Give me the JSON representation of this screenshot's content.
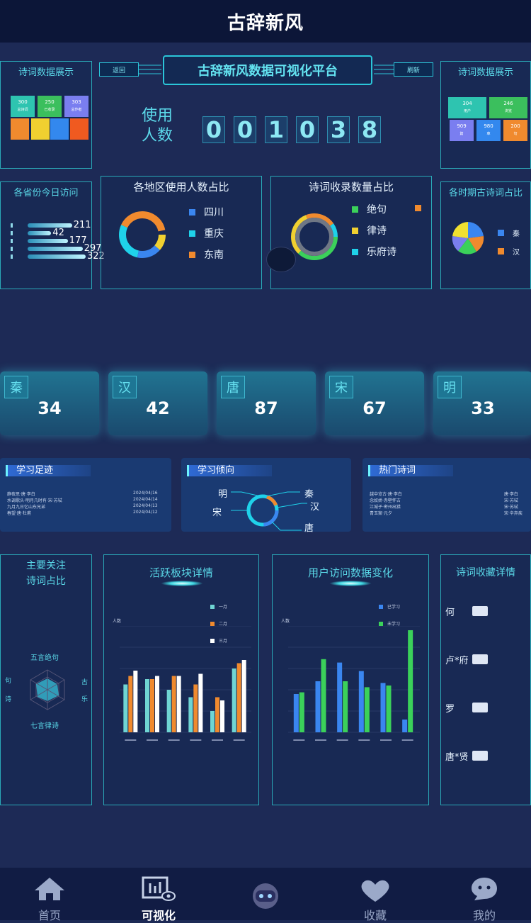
{
  "app_title": "古辞新风",
  "dashboard": {
    "title": "古辞新风数据可视化平台",
    "left_button": "返回",
    "right_button": "刷新",
    "counter_label_1": "使用",
    "counter_label_2": "人数",
    "counter_digits": [
      "0",
      "0",
      "1",
      "0",
      "3",
      "8"
    ]
  },
  "panels": {
    "poem_data_left": {
      "title": "诗词数据展示",
      "tiles": [
        {
          "value": "300",
          "label": "总诗词",
          "color": "#2ec4b0"
        },
        {
          "value": "250",
          "label": "已收录",
          "color": "#3bbf5d"
        },
        {
          "value": "303",
          "label": "总作者",
          "color": "#7a7ef0"
        },
        {
          "value": "",
          "label": "",
          "color": "#f08a2e"
        },
        {
          "value": "",
          "label": "",
          "color": "#f0d030"
        },
        {
          "value": "",
          "label": "",
          "color": "#3388ee"
        },
        {
          "value": "",
          "label": "",
          "color": "#f05a20"
        }
      ]
    },
    "poem_data_right": {
      "title": "诗词数据展示",
      "tiles": [
        {
          "value": "304",
          "label": "用户",
          "color": "#2ec4b0"
        },
        {
          "value": "246",
          "label": "浏览",
          "color": "#3bbf5d"
        },
        {
          "value": "909",
          "label": "篇",
          "color": "#7a7ef0"
        },
        {
          "value": "980",
          "label": "章",
          "color": "#3388ee"
        },
        {
          "value": "200",
          "label": "句",
          "color": "#f08a2e"
        }
      ]
    },
    "province_visits": {
      "title": "各省份今日访问",
      "values": [
        211,
        42,
        177,
        297,
        322
      ]
    },
    "region_share": {
      "title": "各地区使用人数占比",
      "legend": [
        {
          "name": "四川",
          "color": "#3a86f0"
        },
        {
          "name": "重庆",
          "color": "#1fd2ea"
        },
        {
          "name": "东南",
          "color": "#f08a2e"
        }
      ]
    },
    "poem_collection_share": {
      "title": "诗词收录数量占比",
      "legend": [
        {
          "name": "绝句",
          "color": "#3bd15a"
        },
        {
          "name": "律诗",
          "color": "#f0d030"
        },
        {
          "name": "乐府诗",
          "color": "#1fd2ea"
        }
      ]
    },
    "dynasty_share": {
      "title": "各时期古诗词占比",
      "legend": [
        {
          "name": "秦",
          "color": "#3a86f0"
        },
        {
          "name": "汉",
          "color": "#f08a2e"
        }
      ]
    }
  },
  "dynasties": [
    {
      "name": "秦",
      "value": "34"
    },
    {
      "name": "汉",
      "value": "42"
    },
    {
      "name": "唐",
      "value": "87"
    },
    {
      "name": "宋",
      "value": "67"
    },
    {
      "name": "明",
      "value": "33"
    }
  ],
  "learning_footprint": {
    "title": "学习足迹",
    "rows": [
      {
        "text": "静夜思·唐·李白",
        "date": "2024/04/16"
      },
      {
        "text": "水调歌头·明月几时有·宋·苏轼",
        "date": "2024/04/14"
      },
      {
        "text": "九月九日忆山东兄弟",
        "date": "2024/04/13"
      },
      {
        "text": "春望·唐·杜甫",
        "date": "2024/04/12"
      }
    ]
  },
  "learning_tendency": {
    "title": "学习倾向",
    "labels": {
      "ming": "明",
      "song": "宋",
      "qin": "秦",
      "han": "汉",
      "tang": "唐"
    }
  },
  "hot_poems": {
    "title": "热门诗词",
    "rows": [
      {
        "text": "越中览古·唐·李白",
        "right": "唐·李白"
      },
      {
        "text": "念奴娇·赤壁怀古",
        "right": "宋·苏轼"
      },
      {
        "text": "江城子·密州出猎",
        "right": "宋·苏轼"
      },
      {
        "text": "青玉案·元夕",
        "right": "宋·辛弃疾"
      }
    ]
  },
  "focus_share": {
    "title_1": "主要关注",
    "title_2": "诗词占比",
    "labels": {
      "top": "五言绝句",
      "bottom": "七言律诗",
      "left_1": "句",
      "left_2": "诗",
      "right_1": "古",
      "right_2": "乐"
    }
  },
  "active_sections": {
    "title": "活跃板块详情",
    "ylabel": "人数",
    "legend": [
      {
        "name": "一月",
        "color": "#6fd5d3"
      },
      {
        "name": "二月",
        "color": "#f08a2e"
      },
      {
        "name": "三月",
        "color": "#ffffff"
      }
    ]
  },
  "user_visits": {
    "title": "用户访问数据变化",
    "ylabel": "人数",
    "legend": [
      {
        "name": "已学习",
        "color": "#3a86f0"
      },
      {
        "name": "未学习",
        "color": "#3bd15a"
      }
    ]
  },
  "chart_data": [
    {
      "type": "bar",
      "title": "活跃板块详情",
      "ylabel": "人数",
      "categories": [
        "",
        "",
        "",
        "",
        "",
        ""
      ],
      "series": [
        {
          "name": "一月",
          "values": [
            45,
            50,
            40,
            33,
            20,
            60
          ]
        },
        {
          "name": "二月",
          "values": [
            53,
            50,
            53,
            45,
            33,
            65
          ]
        },
        {
          "name": "三月",
          "values": [
            58,
            53,
            53,
            55,
            30,
            68
          ]
        }
      ]
    },
    {
      "type": "bar",
      "title": "用户访问数据变化",
      "ylabel": "人数",
      "categories": [
        "",
        "",
        "",
        "",
        "",
        ""
      ],
      "series": [
        {
          "name": "已学习",
          "values": [
            45,
            60,
            82,
            72,
            58,
            15
          ]
        },
        {
          "name": "未学习",
          "values": [
            47,
            86,
            60,
            53,
            55,
            120
          ]
        }
      ],
      "ylim": [
        0,
        125
      ]
    }
  ],
  "favorites": {
    "title": "诗词收藏详情",
    "items": [
      "何",
      "卢*府",
      "罗",
      "唐*贤"
    ]
  },
  "nav": {
    "items": [
      {
        "label": "首页"
      },
      {
        "label": "可视化"
      },
      {
        "label": ""
      },
      {
        "label": "收藏"
      },
      {
        "label": "我的"
      }
    ]
  }
}
